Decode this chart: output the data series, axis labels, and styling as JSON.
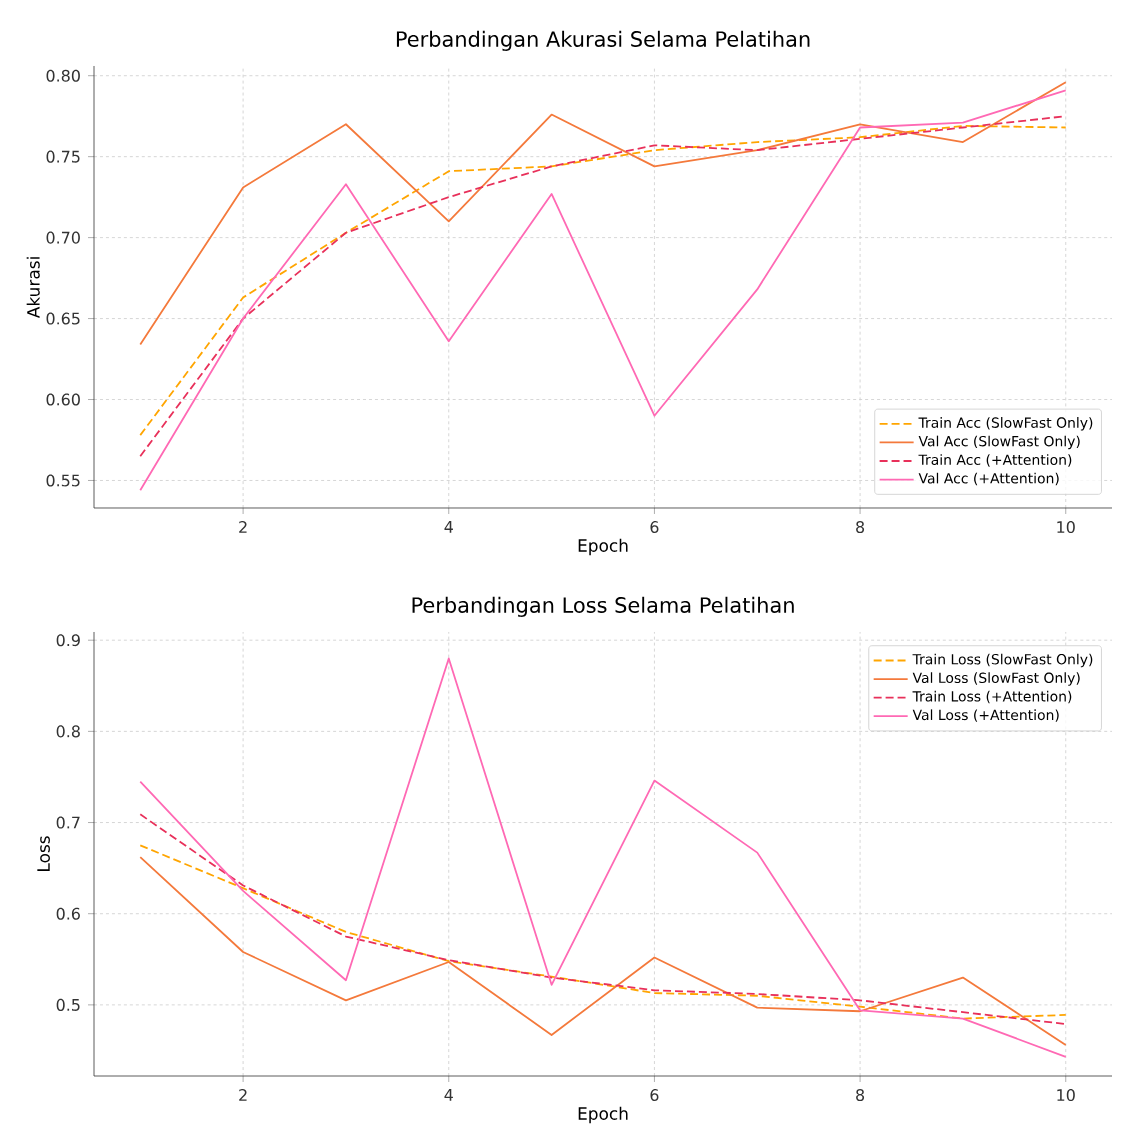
{
  "chart_data": [
    {
      "type": "line",
      "title": "Perbandingan Akurasi Selama Pelatihan",
      "xlabel": "Epoch",
      "ylabel": "Akurasi",
      "x": [
        1,
        2,
        3,
        4,
        5,
        6,
        7,
        8,
        9,
        10
      ],
      "xlim": [
        0.55,
        10.45
      ],
      "xticks": [
        2,
        4,
        6,
        8,
        10
      ],
      "ylim": [
        0.533,
        0.806
      ],
      "yticks": [
        0.55,
        {
          "value": 0.6,
          "label": "0.60"
        },
        0.65,
        {
          "value": 0.7,
          "label": "0.70"
        },
        0.75,
        {
          "value": 0.8,
          "label": "0.80"
        }
      ],
      "grid": true,
      "legend": "bottom right",
      "marker": "none",
      "series": [
        {
          "name": "Train Acc (SlowFast Only)",
          "color": "#ffa500",
          "line_style": "dashed",
          "values": [
            0.578,
            0.663,
            0.703,
            0.741,
            0.744,
            0.754,
            0.759,
            0.762,
            0.769,
            0.768
          ]
        },
        {
          "name": "Val Acc (SlowFast Only)",
          "color": "#f4793b",
          "line_style": "solid",
          "values": [
            0.634,
            0.731,
            0.77,
            0.71,
            0.776,
            0.744,
            0.754,
            0.77,
            0.759,
            0.796
          ]
        },
        {
          "name": "Train Acc (+Attention)",
          "color": "#e8305a",
          "line_style": "dashed",
          "values": [
            0.565,
            0.65,
            0.703,
            0.725,
            0.744,
            0.757,
            0.754,
            0.761,
            0.768,
            0.775
          ]
        },
        {
          "name": "Val Acc (+Attention)",
          "color": "#ff69b4",
          "line_style": "solid",
          "values": [
            0.544,
            0.65,
            0.733,
            0.636,
            0.727,
            0.59,
            0.668,
            0.768,
            0.771,
            0.791
          ]
        }
      ]
    },
    {
      "type": "line",
      "title": "Perbandingan Loss Selama Pelatihan",
      "xlabel": "Epoch",
      "ylabel": "Loss",
      "x": [
        1,
        2,
        3,
        4,
        5,
        6,
        7,
        8,
        9,
        10
      ],
      "xlim": [
        0.55,
        10.45
      ],
      "xticks": [
        2,
        4,
        6,
        8,
        10
      ],
      "ylim": [
        0.422,
        0.909
      ],
      "yticks": [
        0.5,
        0.6,
        0.7,
        0.8,
        0.9
      ],
      "grid": true,
      "legend": "top right",
      "marker": "none",
      "series": [
        {
          "name": "Train Loss (SlowFast Only)",
          "color": "#ffa500",
          "line_style": "dashed",
          "values": [
            0.675,
            0.628,
            0.58,
            0.548,
            0.531,
            0.513,
            0.51,
            0.498,
            0.485,
            0.489
          ]
        },
        {
          "name": "Val Loss (SlowFast Only)",
          "color": "#f4793b",
          "line_style": "solid",
          "values": [
            0.662,
            0.558,
            0.505,
            0.547,
            0.467,
            0.552,
            0.497,
            0.493,
            0.53,
            0.456
          ]
        },
        {
          "name": "Train Loss (+Attention)",
          "color": "#e8305a",
          "line_style": "dashed",
          "values": [
            0.709,
            0.631,
            0.575,
            0.549,
            0.53,
            0.516,
            0.512,
            0.505,
            0.492,
            0.479
          ]
        },
        {
          "name": "Val Loss (+Attention)",
          "color": "#ff69b4",
          "line_style": "solid",
          "values": [
            0.745,
            0.625,
            0.527,
            0.88,
            0.522,
            0.746,
            0.667,
            0.494,
            0.485,
            0.443
          ]
        }
      ]
    }
  ]
}
